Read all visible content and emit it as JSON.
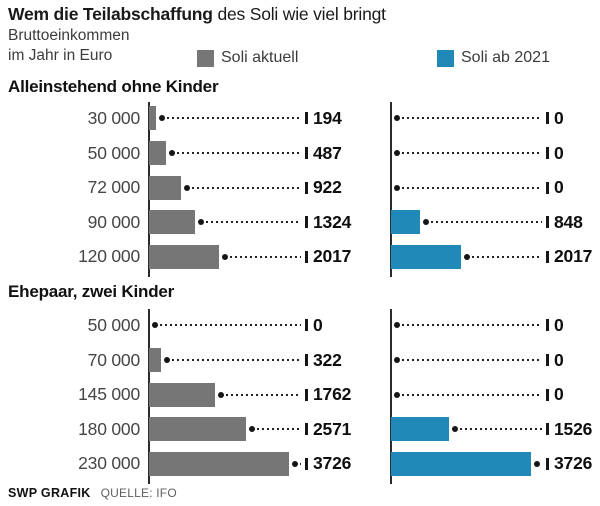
{
  "header": {
    "title_bold": "Wem die Teilabschaffung",
    "title_rest": " des Soli wie viel bringt",
    "subtitle_line1": "Bruttoeinkommen",
    "subtitle_line2": "im Jahr in Euro"
  },
  "legend": [
    {
      "label": "Soli aktuell",
      "color": "#767676"
    },
    {
      "label": "Soli ab 2021",
      "color": "#2089b8"
    }
  ],
  "colors": {
    "bar_gray": "#767676",
    "bar_blue": "#2089b8",
    "marker_black": "#161616"
  },
  "chart_data": {
    "type": "bar",
    "orientation": "horizontal",
    "title": "Wem die Teilabschaffung des Soli wie viel bringt",
    "unit_label": "Bruttoeinkommen im Jahr in Euro",
    "legend": [
      "Soli aktuell",
      "Soli ab 2021"
    ],
    "legend_position": "top",
    "grid": false,
    "value_labels": true,
    "sections": [
      {
        "label": "Alleinstehend ohne Kinder",
        "categories": [
          "30 000",
          "50 000",
          "72 000",
          "90 000",
          "120 000"
        ],
        "series": [
          {
            "name": "Soli aktuell",
            "values": [
              194,
              487,
              922,
              1324,
              2017
            ]
          },
          {
            "name": "Soli ab 2021",
            "values": [
              0,
              0,
              0,
              848,
              2017
            ]
          }
        ]
      },
      {
        "label": "Ehepaar, zwei Kinder",
        "categories": [
          "50 000",
          "70 000",
          "145 000",
          "180 000",
          "230 000"
        ],
        "series": [
          {
            "name": "Soli aktuell",
            "values": [
              0,
              322,
              1762,
              2571,
              3726
            ]
          },
          {
            "name": "Soli ab 2021",
            "values": [
              0,
              0,
              0,
              1526,
              3726
            ]
          }
        ]
      }
    ]
  },
  "footer": {
    "brand": "SWP GRAFIK",
    "source": "QUELLE: IFO"
  }
}
